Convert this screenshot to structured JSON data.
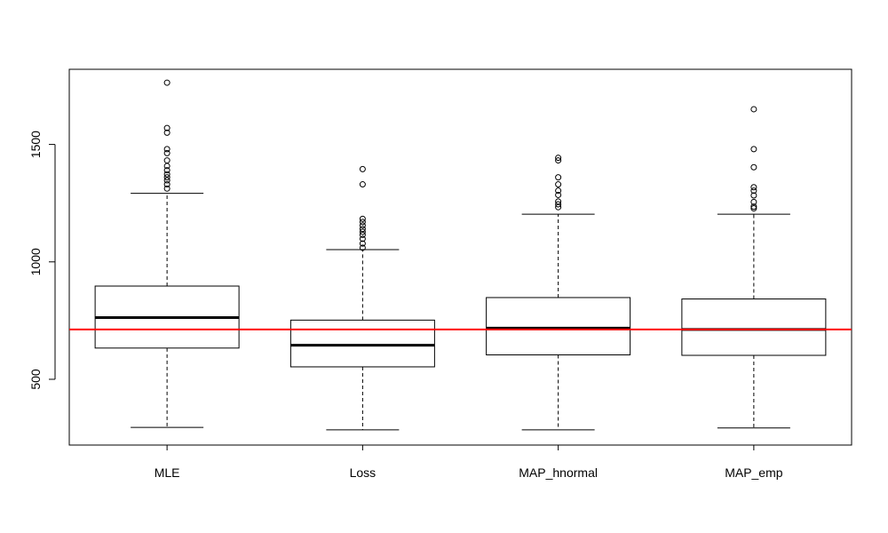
{
  "chart_data": {
    "type": "boxplot",
    "categories": [
      "MLE",
      "Loss",
      "MAP_hnormal",
      "MAP_emp"
    ],
    "ylim": [
      220,
      1820
    ],
    "yticks": [
      500,
      1000,
      1500
    ],
    "ytick_labels": [
      "500",
      "1000",
      "1500"
    ],
    "reference_line": {
      "value": 712,
      "color": "#ff0000"
    },
    "grid": false,
    "boxes": [
      {
        "name": "MLE",
        "whisker_low": 295,
        "q1": 633,
        "median": 763,
        "q3": 897,
        "whisker_high": 1292,
        "outliers": [
          1312,
          1330,
          1347,
          1360,
          1373,
          1390,
          1408,
          1432,
          1463,
          1480,
          1550,
          1570,
          1763
        ]
      },
      {
        "name": "Loss",
        "whisker_low": 285,
        "q1": 553,
        "median": 645,
        "q3": 752,
        "whisker_high": 1052,
        "outliers": [
          1060,
          1078,
          1098,
          1115,
          1128,
          1140,
          1155,
          1170,
          1183,
          1330,
          1395
        ]
      },
      {
        "name": "MAP_hnormal",
        "whisker_low": 285,
        "q1": 604,
        "median": 718,
        "q3": 848,
        "whisker_high": 1203,
        "outliers": [
          1233,
          1245,
          1257,
          1285,
          1303,
          1330,
          1360,
          1432,
          1443
        ]
      },
      {
        "name": "MAP_emp",
        "whisker_low": 293,
        "q1": 602,
        "median": 712,
        "q3": 842,
        "whisker_high": 1203,
        "outliers": [
          1228,
          1235,
          1255,
          1283,
          1303,
          1318,
          1403,
          1480,
          1650
        ]
      }
    ],
    "colors": {
      "box": "#000000",
      "reference": "#ff0000"
    }
  }
}
